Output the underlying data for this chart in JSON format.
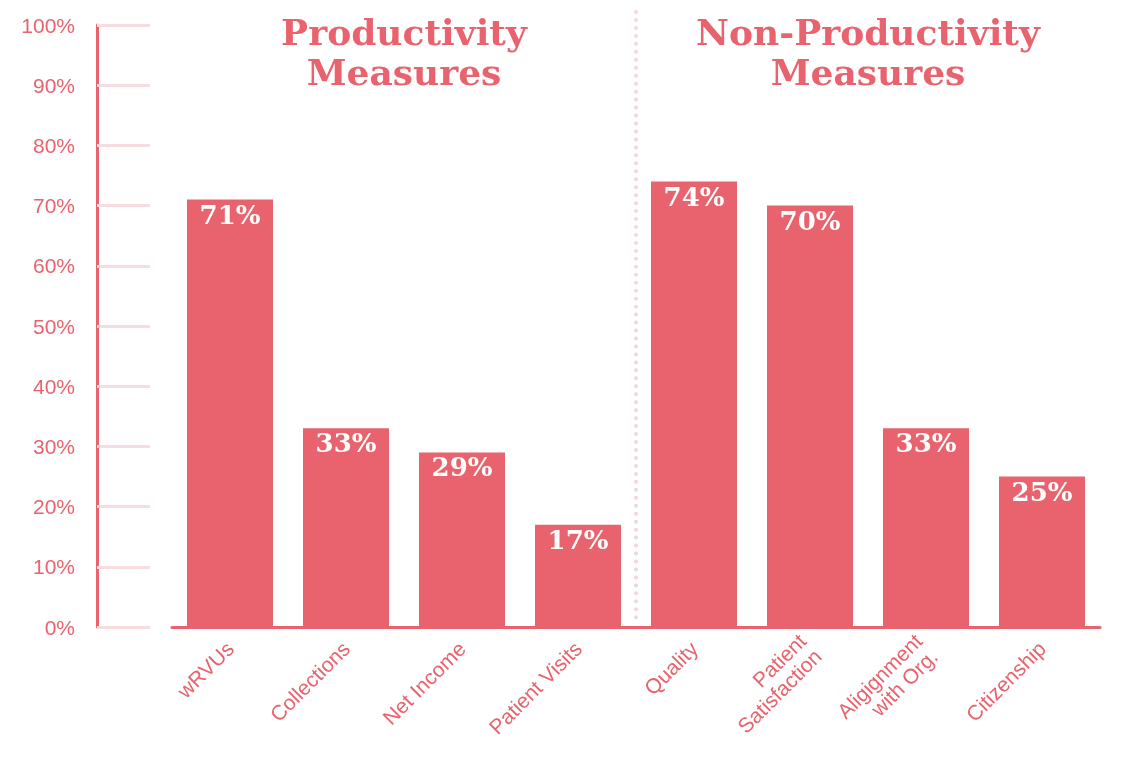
{
  "chart_data": {
    "type": "bar",
    "categories": [
      "wRVUs",
      "Collections",
      "Net Income",
      "Patient Visits",
      "Quality",
      "Patient\nSatisfaction",
      "Aligignment\nwith Org.",
      "Citizenship"
    ],
    "values": [
      71,
      33,
      29,
      17,
      74,
      70,
      33,
      25
    ],
    "value_labels": [
      "71%",
      "33%",
      "29%",
      "17%",
      "74%",
      "70%",
      "33%",
      "25%"
    ],
    "color": "#e8636d",
    "ylim": [
      0,
      100
    ],
    "yticks": [
      {
        "value": 0,
        "label": "0%"
      },
      {
        "value": 10,
        "label": "10%"
      },
      {
        "value": 20,
        "label": "20%"
      },
      {
        "value": 30,
        "label": "30%"
      },
      {
        "value": 40,
        "label": "40%"
      },
      {
        "value": 50,
        "label": "50%"
      },
      {
        "value": 60,
        "label": "60%"
      },
      {
        "value": 70,
        "label": "70%"
      },
      {
        "value": 80,
        "label": "80%"
      },
      {
        "value": 90,
        "label": "90%"
      },
      {
        "value": 100,
        "label": "100%"
      }
    ],
    "annotations": [
      "Productivity\nMeasures",
      "Non-Productivity\nMeasures"
    ],
    "grid": false
  }
}
